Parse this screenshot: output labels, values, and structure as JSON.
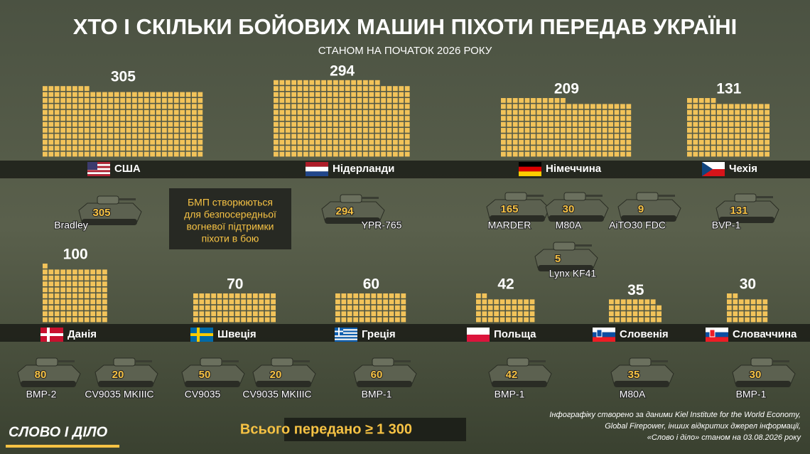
{
  "header": {
    "title": "ХТО І СКІЛЬКИ БОЙОВИХ МАШИН ПІХОТИ ПЕРЕДАВ УКРАЇНІ",
    "subtitle": "СТАНОМ НА ПОЧАТОК 2026 РОКУ"
  },
  "countries": [
    {
      "name": "США",
      "total": 305,
      "vehicles": [
        {
          "name": "Bradley",
          "count": 305
        }
      ]
    },
    {
      "name": "Нідерланди",
      "total": 294,
      "vehicles": [
        {
          "name": "YPR-765",
          "count": 294
        }
      ]
    },
    {
      "name": "Німеччина",
      "total": 209,
      "vehicles": [
        {
          "name": "MARDER",
          "count": 165
        },
        {
          "name": "M80A",
          "count": 30
        },
        {
          "name": "AiTO30 FDC",
          "count": 9
        },
        {
          "name": "Lynx KF41",
          "count": 5
        }
      ]
    },
    {
      "name": "Чехія",
      "total": 131,
      "vehicles": [
        {
          "name": "BVP-1",
          "count": 131
        }
      ]
    },
    {
      "name": "Данія",
      "total": 100,
      "vehicles": [
        {
          "name": "BMP-2",
          "count": 80
        },
        {
          "name": "CV9035 MKIIIC",
          "count": 20
        }
      ]
    },
    {
      "name": "Швеція",
      "total": 70,
      "vehicles": [
        {
          "name": "CV9035",
          "count": 50
        },
        {
          "name": "CV9035 MKIIIC",
          "count": 20
        }
      ]
    },
    {
      "name": "Греція",
      "total": 60,
      "vehicles": [
        {
          "name": "BMP-1",
          "count": 60
        }
      ]
    },
    {
      "name": "Польща",
      "total": 42,
      "vehicles": [
        {
          "name": "BMP-1",
          "count": 42
        }
      ]
    },
    {
      "name": "Словенія",
      "total": 35,
      "vehicles": [
        {
          "name": "M80A",
          "count": 35
        }
      ]
    },
    {
      "name": "Словаччина",
      "total": 30,
      "vehicles": [
        {
          "name": "BMP-1",
          "count": 30
        }
      ]
    }
  ],
  "callout": [
    "БМП створюються",
    "для безпосередньої",
    "вогневої підтримки",
    "піхоти в бою"
  ],
  "total": {
    "label": "Всього передано ≥",
    "value": "1 300"
  },
  "source": [
    "Інфографіку створено за даними Kiel Institute for the World Economy,",
    "Global Firepower, інших відкритих джерел інформації,",
    "«Слово і діло» станом на 03.08.2026 року"
  ],
  "logo": "СЛОВО І ДІЛО"
}
